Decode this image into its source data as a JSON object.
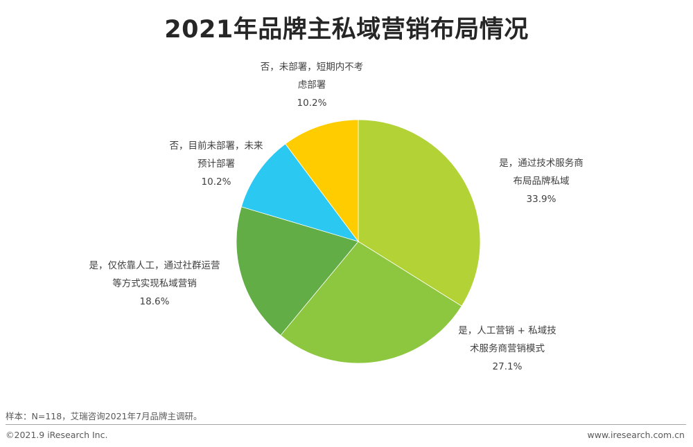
{
  "chart_data": {
    "type": "pie",
    "title": "2021年品牌主私域营销布局情况",
    "slices": [
      {
        "label_lines": [
          "是，通过技术服务商",
          "布局品牌私域"
        ],
        "value": 33.9,
        "value_text": "33.9%",
        "color": "#B2D235"
      },
      {
        "label_lines": [
          "是，人工营销 + 私域技",
          "术服务商营销模式"
        ],
        "value": 27.1,
        "value_text": "27.1%",
        "color": "#8DC63F"
      },
      {
        "label_lines": [
          "是，仅依靠人工，通过社群运营",
          "等方式实现私域营销"
        ],
        "value": 18.6,
        "value_text": "18.6%",
        "color": "#62AD45"
      },
      {
        "label_lines": [
          "否，目前未部署，未来",
          "预计部署"
        ],
        "value": 10.2,
        "value_text": "10.2%",
        "color": "#2BC8F2"
      },
      {
        "label_lines": [
          "否，未部署，短期内不考",
          "虑部署"
        ],
        "value": 10.2,
        "value_text": "10.2%",
        "color": "#FFCC00"
      }
    ]
  },
  "footer": {
    "note": "样本：N=118，艾瑞咨询2021年7月品牌主调研。",
    "copyright": "©2021.9 iResearch Inc.",
    "url": "www.iresearch.com.cn"
  }
}
